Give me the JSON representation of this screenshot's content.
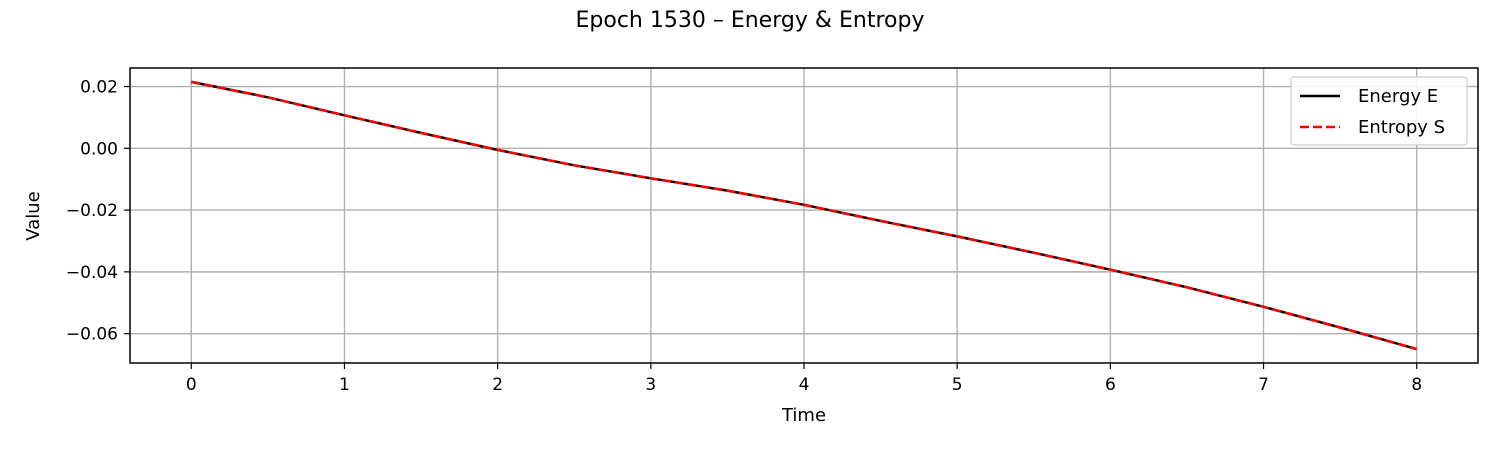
{
  "chart_data": {
    "type": "line",
    "title": "Epoch 1530 – Energy & Entropy",
    "xlabel": "Time",
    "ylabel": "Value",
    "xlim": [
      -0.4,
      8.4
    ],
    "ylim": [
      -0.0695,
      0.026
    ],
    "xticks": [
      0,
      1,
      2,
      3,
      4,
      5,
      6,
      7,
      8
    ],
    "xtick_labels": [
      "0",
      "1",
      "2",
      "3",
      "4",
      "5",
      "6",
      "7",
      "8"
    ],
    "yticks": [
      0.02,
      0.0,
      -0.02,
      -0.04,
      -0.06
    ],
    "ytick_labels": [
      "0.02",
      "0.00",
      "−0.02",
      "−0.04",
      "−0.06"
    ],
    "grid": true,
    "legend_position": "top-right",
    "x": [
      0,
      0.5,
      1,
      1.5,
      2,
      2.5,
      3,
      3.5,
      4,
      4.5,
      5,
      5.5,
      6,
      6.5,
      7,
      7.5,
      8
    ],
    "series": [
      {
        "name": "Energy E",
        "color": "#000000",
        "line_style": "solid",
        "values": [
          0.0215,
          0.0165,
          0.0107,
          0.005,
          -0.0005,
          -0.0055,
          -0.0097,
          -0.0137,
          -0.0183,
          -0.0235,
          -0.0285,
          -0.0338,
          -0.0393,
          -0.045,
          -0.0513,
          -0.058,
          -0.065
        ]
      },
      {
        "name": "Entropy S",
        "color": "#ff0000",
        "line_style": "dashed",
        "values": [
          0.0215,
          0.0165,
          0.0107,
          0.005,
          -0.0005,
          -0.0055,
          -0.0097,
          -0.0137,
          -0.0183,
          -0.0235,
          -0.0285,
          -0.0338,
          -0.0393,
          -0.045,
          -0.0513,
          -0.058,
          -0.065
        ]
      }
    ]
  }
}
